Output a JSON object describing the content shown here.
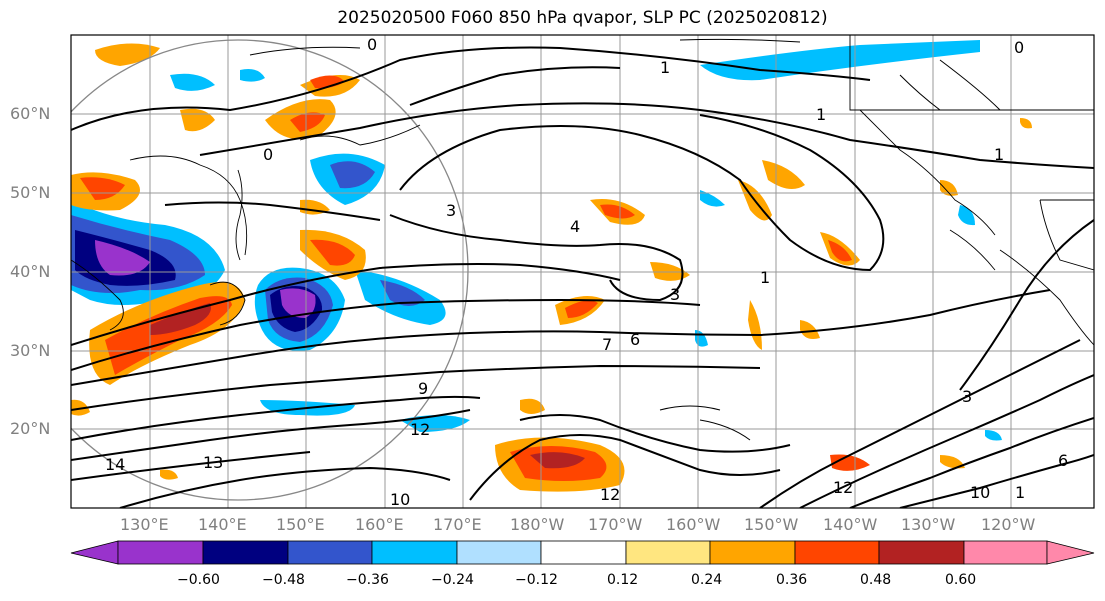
{
  "title": "2025020500 F060 850 hPa qvapor, SLP PC (2025020812)",
  "lat_labels": [
    "60°N",
    "50°N",
    "40°N",
    "30°N",
    "20°N"
  ],
  "lon_labels": [
    "130°E",
    "140°E",
    "150°E",
    "160°E",
    "170°E",
    "180°W",
    "170°W",
    "160°W",
    "150°W",
    "140°W",
    "130°W",
    "120°W"
  ],
  "colorbar": {
    "colors": [
      "#9933cc",
      "#000080",
      "#3355cc",
      "#00bfff",
      "#b0e0ff",
      "#ffffff",
      "#ffe680",
      "#ffa500",
      "#ff4500",
      "#b22222",
      "#ff88aa"
    ],
    "tick_labels": [
      "−0.60",
      "−0.48",
      "−0.36",
      "−0.24",
      "−0.12",
      "0.12",
      "0.24",
      "0.36",
      "0.48",
      "0.60"
    ]
  },
  "contour_labels": [
    "0",
    "1",
    "1",
    "0",
    "1",
    "3",
    "4",
    "3",
    "9",
    "7",
    "6",
    "12",
    "13",
    "14",
    "10",
    "12",
    "3",
    "6",
    "10",
    "1",
    "0",
    "1",
    "12"
  ]
}
